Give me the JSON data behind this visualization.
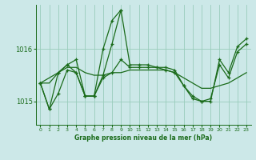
{
  "bg_color": "#cce8e8",
  "grid_color": "#99ccbb",
  "line_color": "#1a6b1a",
  "title": "Graphe pression niveau de la mer (hPa)",
  "ylabel_ticks": [
    1015,
    1016
  ],
  "xlim": [
    -0.5,
    23.5
  ],
  "ylim": [
    1014.55,
    1016.85
  ],
  "series1_x": [
    0,
    1,
    2,
    3,
    4,
    5,
    6,
    7,
    8,
    9,
    10,
    11,
    12,
    13,
    14,
    15,
    16,
    17,
    18,
    19,
    20,
    21,
    22,
    23
  ],
  "series1_y": [
    1015.35,
    1014.85,
    1015.15,
    1015.6,
    1015.55,
    1015.1,
    1015.1,
    1015.45,
    1015.55,
    1015.8,
    1015.65,
    1015.65,
    1015.65,
    1015.65,
    1015.6,
    1015.55,
    1015.3,
    1015.05,
    1015.0,
    1015.05,
    1015.7,
    1015.45,
    1015.95,
    1016.1
  ],
  "series2_x": [
    0,
    1,
    2,
    3,
    4,
    5,
    6,
    7,
    8,
    9,
    10,
    11,
    12,
    13,
    14,
    15,
    16,
    17,
    18,
    19,
    20,
    21,
    22,
    23
  ],
  "series2_y": [
    1015.35,
    1015.35,
    1015.55,
    1015.65,
    1015.65,
    1015.55,
    1015.5,
    1015.5,
    1015.55,
    1015.55,
    1015.6,
    1015.6,
    1015.6,
    1015.6,
    1015.6,
    1015.55,
    1015.45,
    1015.35,
    1015.25,
    1015.25,
    1015.3,
    1015.35,
    1015.45,
    1015.55
  ],
  "series3_x": [
    0,
    1,
    2,
    3,
    4,
    5,
    6,
    7,
    8,
    9,
    10,
    11,
    12,
    13,
    14,
    15,
    16,
    17,
    18,
    19,
    20,
    21,
    22,
    23
  ],
  "series3_y": [
    1015.35,
    1014.85,
    1015.55,
    1015.7,
    1015.55,
    1015.1,
    1015.1,
    1016.0,
    1016.55,
    1016.75,
    1015.7,
    1015.7,
    1015.7,
    1015.65,
    1015.65,
    1015.6,
    1015.3,
    1015.1,
    1015.0,
    1015.0,
    1015.8,
    1015.55,
    1016.05,
    1016.2
  ],
  "series4_x": [
    0,
    2,
    3,
    4,
    5,
    6,
    7,
    8,
    9
  ],
  "series4_y": [
    1015.35,
    1015.55,
    1015.7,
    1015.8,
    1015.1,
    1015.1,
    1015.5,
    1016.1,
    1016.75
  ]
}
